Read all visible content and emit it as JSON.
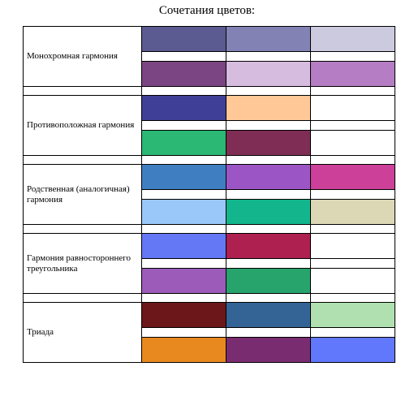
{
  "title": "Сочетания цветов:",
  "groups": [
    {
      "label": "Монохромная гармония",
      "rows": [
        [
          "#5b5b91",
          "#8282b5",
          "#cbcadf"
        ],
        [
          "#7b4482",
          "#d6bcdf",
          "#b57dc3"
        ]
      ]
    },
    {
      "label": "Противоположная гармония",
      "rows": [
        [
          "#3f3f98",
          "#ffc896",
          ""
        ],
        [
          "#2bb774",
          "#7f2d55",
          ""
        ]
      ]
    },
    {
      "label": "Родственная (аналогичная) гармония",
      "rows": [
        [
          "#3f7fc1",
          "#9b55c5",
          "#cc4099"
        ],
        [
          "#9ac9f9",
          "#13b68c",
          "#dcd8b5"
        ]
      ]
    },
    {
      "label": "Гармония равностороннего треугольника",
      "rows": [
        [
          "#6478f5",
          "#ad2050",
          ""
        ],
        [
          "#9c5bb8",
          "#27a36c",
          ""
        ]
      ]
    },
    {
      "label": "Триада",
      "rows": [
        [
          "#6c1719",
          "#346495",
          "#b0e0b0"
        ],
        [
          "#e8891f",
          "#7a2c71",
          "#6278fc"
        ]
      ]
    }
  ]
}
